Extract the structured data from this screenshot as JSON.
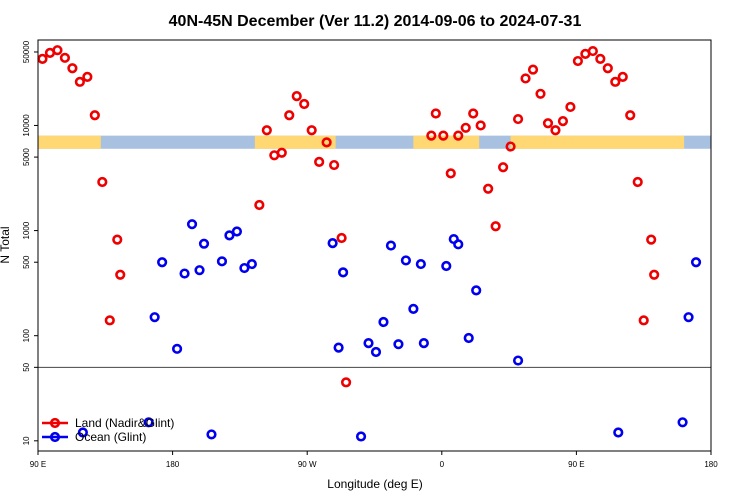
{
  "chart_data": {
    "type": "scatter",
    "title": "40N-45N December (Ver 11.2)   2014-09-06 to 2024-07-31",
    "xlabel": "Longitude (deg E)",
    "ylabel": "N Total",
    "y_scale": "log",
    "xlim": [
      90,
      540
    ],
    "ylim": [
      8,
      65000
    ],
    "x_ticks": [
      {
        "value": 90,
        "label": "90 E"
      },
      {
        "value": 180,
        "label": "180"
      },
      {
        "value": 270,
        "label": "90 W"
      },
      {
        "value": 360,
        "label": "0"
      },
      {
        "value": 450,
        "label": "90 E"
      },
      {
        "value": 540,
        "label": "180"
      }
    ],
    "y_ticks": [
      {
        "value": 10,
        "label": "10"
      },
      {
        "value": 50,
        "label": "50"
      },
      {
        "value": 100,
        "label": "100"
      },
      {
        "value": 500,
        "label": "500"
      },
      {
        "value": 1000,
        "label": "1000"
      },
      {
        "value": 5000,
        "label": "5000"
      },
      {
        "value": 10000,
        "label": "10000"
      },
      {
        "value": 50000,
        "label": "50000"
      }
    ],
    "reference_line": 50,
    "land_band": {
      "y_range": [
        6000,
        8000
      ],
      "land_color": "#ffd873",
      "ocean_color": "#a9c1e0",
      "land_segments": [
        [
          90,
          132
        ],
        [
          235,
          289
        ],
        [
          341,
          385
        ],
        [
          406,
          522
        ]
      ]
    },
    "legend_position": "bottom-left",
    "series": [
      {
        "name": "Land (Nadir&Glint)",
        "color": "#ee0000",
        "points": [
          {
            "x": 93,
            "y": 43000
          },
          {
            "x": 98,
            "y": 49000
          },
          {
            "x": 103,
            "y": 52000
          },
          {
            "x": 108,
            "y": 44000
          },
          {
            "x": 113,
            "y": 35000
          },
          {
            "x": 118,
            "y": 26000
          },
          {
            "x": 123,
            "y": 29000
          },
          {
            "x": 128,
            "y": 12500
          },
          {
            "x": 133,
            "y": 2900
          },
          {
            "x": 138,
            "y": 140
          },
          {
            "x": 143,
            "y": 820
          },
          {
            "x": 145,
            "y": 380
          },
          {
            "x": 238,
            "y": 1750
          },
          {
            "x": 243,
            "y": 9000
          },
          {
            "x": 248,
            "y": 5200
          },
          {
            "x": 253,
            "y": 5500
          },
          {
            "x": 258,
            "y": 12500
          },
          {
            "x": 263,
            "y": 19000
          },
          {
            "x": 268,
            "y": 16000
          },
          {
            "x": 273,
            "y": 9000
          },
          {
            "x": 278,
            "y": 4500
          },
          {
            "x": 283,
            "y": 6900
          },
          {
            "x": 288,
            "y": 4200
          },
          {
            "x": 293,
            "y": 850
          },
          {
            "x": 296,
            "y": 36
          },
          {
            "x": 353,
            "y": 8000
          },
          {
            "x": 356,
            "y": 13000
          },
          {
            "x": 361,
            "y": 8000
          },
          {
            "x": 366,
            "y": 3500
          },
          {
            "x": 371,
            "y": 8000
          },
          {
            "x": 376,
            "y": 9500
          },
          {
            "x": 381,
            "y": 13000
          },
          {
            "x": 386,
            "y": 10000
          },
          {
            "x": 391,
            "y": 2500
          },
          {
            "x": 396,
            "y": 1100
          },
          {
            "x": 401,
            "y": 4000
          },
          {
            "x": 406,
            "y": 6300
          },
          {
            "x": 411,
            "y": 11500
          },
          {
            "x": 416,
            "y": 28000
          },
          {
            "x": 421,
            "y": 34000
          },
          {
            "x": 426,
            "y": 20000
          },
          {
            "x": 431,
            "y": 10500
          },
          {
            "x": 436,
            "y": 9000
          },
          {
            "x": 441,
            "y": 11000
          },
          {
            "x": 446,
            "y": 15000
          },
          {
            "x": 451,
            "y": 41000
          },
          {
            "x": 456,
            "y": 48000
          },
          {
            "x": 461,
            "y": 51000
          },
          {
            "x": 466,
            "y": 43000
          },
          {
            "x": 471,
            "y": 35000
          },
          {
            "x": 476,
            "y": 26000
          },
          {
            "x": 481,
            "y": 29000
          },
          {
            "x": 486,
            "y": 12500
          },
          {
            "x": 491,
            "y": 2900
          },
          {
            "x": 495,
            "y": 140
          },
          {
            "x": 500,
            "y": 820
          },
          {
            "x": 502,
            "y": 380
          }
        ]
      },
      {
        "name": "Ocean (Glint)",
        "color": "#0000ee",
        "points": [
          {
            "x": 120,
            "y": 12
          },
          {
            "x": 164,
            "y": 15
          },
          {
            "x": 168,
            "y": 150
          },
          {
            "x": 173,
            "y": 500
          },
          {
            "x": 183,
            "y": 75
          },
          {
            "x": 188,
            "y": 390
          },
          {
            "x": 193,
            "y": 1150
          },
          {
            "x": 198,
            "y": 420
          },
          {
            "x": 201,
            "y": 750
          },
          {
            "x": 206,
            "y": 11.5
          },
          {
            "x": 213,
            "y": 510
          },
          {
            "x": 218,
            "y": 900
          },
          {
            "x": 223,
            "y": 980
          },
          {
            "x": 228,
            "y": 440
          },
          {
            "x": 233,
            "y": 480
          },
          {
            "x": 287,
            "y": 760
          },
          {
            "x": 291,
            "y": 77
          },
          {
            "x": 294,
            "y": 400
          },
          {
            "x": 306,
            "y": 11
          },
          {
            "x": 311,
            "y": 85
          },
          {
            "x": 316,
            "y": 70
          },
          {
            "x": 321,
            "y": 135
          },
          {
            "x": 326,
            "y": 720
          },
          {
            "x": 331,
            "y": 83
          },
          {
            "x": 336,
            "y": 520
          },
          {
            "x": 341,
            "y": 180
          },
          {
            "x": 346,
            "y": 480
          },
          {
            "x": 348,
            "y": 85
          },
          {
            "x": 363,
            "y": 460
          },
          {
            "x": 368,
            "y": 830
          },
          {
            "x": 371,
            "y": 740
          },
          {
            "x": 378,
            "y": 95
          },
          {
            "x": 383,
            "y": 270
          },
          {
            "x": 411,
            "y": 58
          },
          {
            "x": 478,
            "y": 12
          },
          {
            "x": 521,
            "y": 15
          },
          {
            "x": 525,
            "y": 150
          },
          {
            "x": 530,
            "y": 500
          }
        ]
      }
    ]
  }
}
